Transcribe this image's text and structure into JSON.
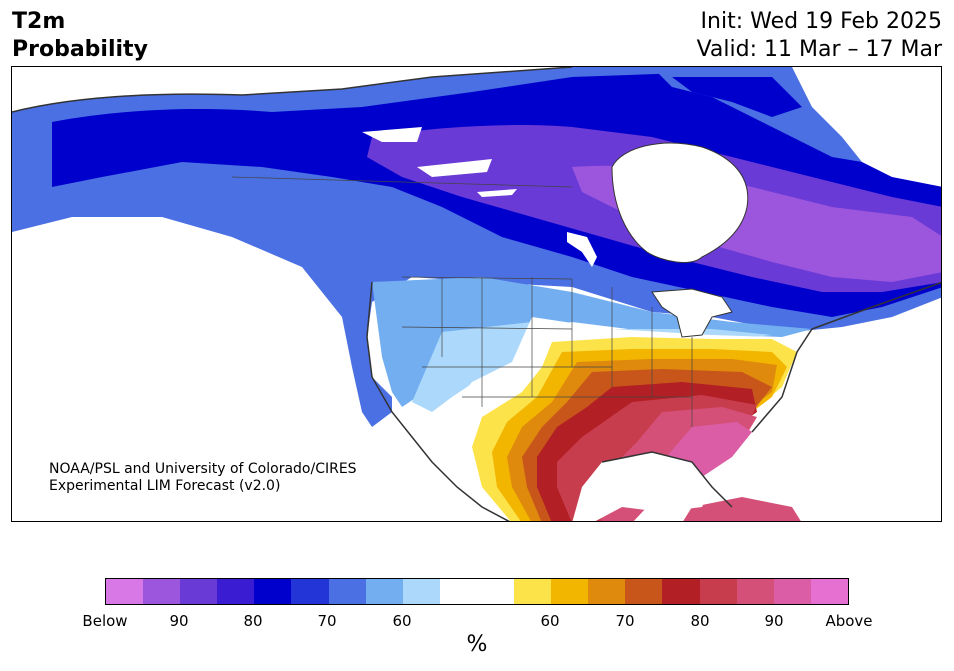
{
  "header": {
    "title_line1": "T2m",
    "title_line2": "Probability",
    "init_label": "Init: Wed 19 Feb 2025",
    "valid_label": "Valid: 11 Mar – 17 Mar"
  },
  "credits": {
    "line1": "NOAA/PSL and University of Colorado/CIRES",
    "line2": "Experimental LIM Forecast (v2.0)"
  },
  "colorbar": {
    "colors": [
      "#d778e6",
      "#9c55dd",
      "#6a3ad7",
      "#3a1cd3",
      "#0000cc",
      "#2435d8",
      "#4a70e3",
      "#72aef0",
      "#acd9fb",
      "#ffffff",
      "#ffffff",
      "#fde34a",
      "#f2b500",
      "#df8a0d",
      "#c8561a",
      "#b21f24",
      "#c83d4e",
      "#d55078",
      "#db5da5",
      "#e66fd2"
    ],
    "tick_labels": [
      "Below",
      "90",
      "80",
      "70",
      "60",
      "60",
      "70",
      "80",
      "90",
      "Above"
    ],
    "units": "%"
  },
  "map": {
    "colors": {
      "below_light": "#acd9fb",
      "below_60": "#72aef0",
      "below_70": "#4a70e3",
      "below_75": "#2435d8",
      "below_80": "#0000cc",
      "below_85": "#3a1cd3",
      "below_90": "#6a3ad7",
      "below_95": "#9c55dd",
      "near_normal": "#ffffff",
      "above_55": "#fde34a",
      "above_60": "#f2b500",
      "above_65": "#df8a0d",
      "above_70": "#c8561a",
      "above_75": "#b21f24",
      "above_80": "#c83d4e",
      "above_85": "#d55078",
      "above_90": "#db5da5",
      "coastline": "#333333"
    }
  }
}
